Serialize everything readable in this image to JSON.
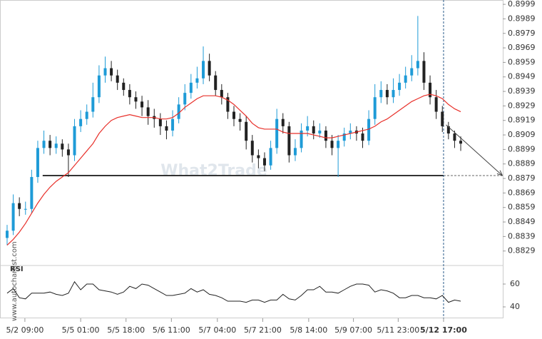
{
  "chart_data": {
    "type": "candlestick",
    "side_text": "www.autochartist.com",
    "watermark": "What2Trade",
    "up_color": "#1e9bd7",
    "down_color": "#222222",
    "ma_color": "#e8302a",
    "xlim": [
      -1.16,
      80.86
    ],
    "ylim": [
      0.882,
      0.9002
    ],
    "yticks": [
      0.8999,
      0.8989,
      0.8979,
      0.8969,
      0.8959,
      0.8949,
      0.8939,
      0.8929,
      0.8919,
      0.8909,
      0.8899,
      0.8889,
      0.8879,
      0.8869,
      0.8859,
      0.8849,
      0.8839,
      0.8829
    ],
    "xticks": [
      {
        "value": 2.9,
        "label": "5/2 09:00"
      },
      {
        "value": 12.0,
        "label": "5/5 01:00"
      },
      {
        "value": 19.4,
        "label": "5/5 18:00"
      },
      {
        "value": 26.8,
        "label": "5/6 11:00"
      },
      {
        "value": 34.3,
        "label": "5/7 04:00"
      },
      {
        "value": 41.7,
        "label": "5/7 21:00"
      },
      {
        "value": 49.2,
        "label": "5/8 14:00"
      },
      {
        "value": 56.5,
        "label": "5/9 07:00"
      },
      {
        "value": 63.8,
        "label": "5/11 23:00"
      },
      {
        "value": 71.2,
        "label": "5/12 17:00"
      }
    ],
    "open": [
      0.8838,
      0.8843,
      0.8862,
      0.8858,
      0.8858,
      0.888,
      0.89,
      0.8905,
      0.89,
      0.8903,
      0.8899,
      0.8895,
      0.8915,
      0.892,
      0.8925,
      0.8935,
      0.895,
      0.8955,
      0.895,
      0.8945,
      0.894,
      0.8935,
      0.8932,
      0.8928,
      0.8922,
      0.892,
      0.8915,
      0.8912,
      0.892,
      0.893,
      0.8938,
      0.8945,
      0.8948,
      0.896,
      0.895,
      0.894,
      0.8935,
      0.8925,
      0.892,
      0.8918,
      0.8905,
      0.8895,
      0.8893,
      0.8888,
      0.89,
      0.892,
      0.8915,
      0.8895,
      0.89,
      0.8912,
      0.8915,
      0.891,
      0.8912,
      0.8905,
      0.89,
      0.8905,
      0.891,
      0.8912,
      0.891,
      0.8905,
      0.892,
      0.8935,
      0.894,
      0.8935,
      0.894,
      0.8945,
      0.895,
      0.8955,
      0.896,
      0.8945,
      0.8935,
      0.8925,
      0.8915,
      0.891,
      0.8905
    ],
    "high": [
      0.8847,
      0.8868,
      0.8866,
      0.8863,
      0.8885,
      0.8905,
      0.8912,
      0.8909,
      0.8908,
      0.8906,
      0.8903,
      0.892,
      0.8926,
      0.893,
      0.8945,
      0.8957,
      0.8963,
      0.896,
      0.8954,
      0.8948,
      0.8944,
      0.8939,
      0.8936,
      0.8933,
      0.8927,
      0.8924,
      0.8919,
      0.8926,
      0.8935,
      0.8944,
      0.8951,
      0.8956,
      0.897,
      0.8965,
      0.8953,
      0.8944,
      0.8938,
      0.8929,
      0.8924,
      0.8922,
      0.8909,
      0.8899,
      0.8897,
      0.8905,
      0.8927,
      0.8924,
      0.8918,
      0.8906,
      0.8917,
      0.8922,
      0.8919,
      0.8917,
      0.8915,
      0.8909,
      0.8909,
      0.8914,
      0.8917,
      0.8915,
      0.8914,
      0.8926,
      0.8944,
      0.8946,
      0.8944,
      0.8948,
      0.8951,
      0.8956,
      0.8964,
      0.8991,
      0.8966,
      0.895,
      0.894,
      0.8929,
      0.8918,
      0.8912,
      0.8908
    ],
    "low": [
      0.8833,
      0.884,
      0.8853,
      0.8854,
      0.8855,
      0.8876,
      0.8896,
      0.8895,
      0.8896,
      0.8894,
      0.888,
      0.8891,
      0.8911,
      0.8916,
      0.8921,
      0.8931,
      0.8945,
      0.8946,
      0.894,
      0.8936,
      0.893,
      0.8927,
      0.8922,
      0.8916,
      0.8914,
      0.8909,
      0.8906,
      0.8908,
      0.8917,
      0.8926,
      0.8934,
      0.8941,
      0.8944,
      0.8946,
      0.8936,
      0.893,
      0.892,
      0.8915,
      0.8912,
      0.8899,
      0.889,
      0.8886,
      0.8884,
      0.8885,
      0.8896,
      0.891,
      0.889,
      0.8891,
      0.8897,
      0.8908,
      0.8906,
      0.8907,
      0.89,
      0.8895,
      0.888,
      0.8901,
      0.8906,
      0.8905,
      0.89,
      0.8902,
      0.8916,
      0.8931,
      0.893,
      0.8931,
      0.8936,
      0.8941,
      0.8946,
      0.895,
      0.894,
      0.893,
      0.892,
      0.8911,
      0.8906,
      0.89,
      0.8898
    ],
    "close": [
      0.8843,
      0.8862,
      0.8858,
      0.8858,
      0.888,
      0.89,
      0.8905,
      0.89,
      0.8903,
      0.8899,
      0.8895,
      0.8915,
      0.892,
      0.8925,
      0.8935,
      0.895,
      0.8955,
      0.895,
      0.8945,
      0.894,
      0.8935,
      0.8932,
      0.8928,
      0.8922,
      0.892,
      0.8915,
      0.8912,
      0.892,
      0.893,
      0.8938,
      0.8945,
      0.8948,
      0.896,
      0.895,
      0.894,
      0.8935,
      0.8925,
      0.892,
      0.8918,
      0.8905,
      0.8895,
      0.8893,
      0.8888,
      0.89,
      0.892,
      0.8915,
      0.8895,
      0.89,
      0.8912,
      0.8915,
      0.891,
      0.8912,
      0.8905,
      0.89,
      0.8905,
      0.891,
      0.8912,
      0.891,
      0.8905,
      0.892,
      0.8935,
      0.894,
      0.8935,
      0.894,
      0.8945,
      0.895,
      0.8955,
      0.896,
      0.8945,
      0.8935,
      0.8925,
      0.8915,
      0.891,
      0.8905,
      0.8903
    ],
    "ma": [
      0.8833,
      0.8837,
      0.8842,
      0.8848,
      0.8855,
      0.8862,
      0.8868,
      0.8873,
      0.8877,
      0.888,
      0.8883,
      0.8888,
      0.8893,
      0.8898,
      0.8903,
      0.891,
      0.8915,
      0.8919,
      0.8921,
      0.8922,
      0.8923,
      0.8922,
      0.8921,
      0.8921,
      0.8921,
      0.892,
      0.892,
      0.8921,
      0.8924,
      0.8928,
      0.8931,
      0.8934,
      0.8936,
      0.8936,
      0.8936,
      0.8935,
      0.8933,
      0.893,
      0.8926,
      0.8922,
      0.8917,
      0.8914,
      0.8913,
      0.8913,
      0.8913,
      0.8911,
      0.891,
      0.891,
      0.891,
      0.891,
      0.8909,
      0.8908,
      0.8907,
      0.8907,
      0.8908,
      0.8909,
      0.891,
      0.8911,
      0.8912,
      0.8913,
      0.8915,
      0.8918,
      0.892,
      0.8923,
      0.8926,
      0.8929,
      0.8932,
      0.8934,
      0.8936,
      0.8937,
      0.8936,
      0.8934,
      0.893,
      0.8927,
      0.8925
    ],
    "support": {
      "level": 0.8881,
      "from": 5.8,
      "to": 71.2
    },
    "projection": {
      "from": [
        71.6,
        0.8916
      ],
      "to": [
        80.8,
        0.8881
      ]
    },
    "current_x": 71.2,
    "rsi": {
      "title": "RSI",
      "ylim": [
        30,
        75
      ],
      "yticks": [
        40,
        60
      ],
      "values": [
        52,
        56,
        48,
        47,
        52,
        52,
        52,
        53,
        51,
        50,
        52,
        62,
        55,
        60,
        60,
        55,
        54,
        53,
        51,
        53,
        58,
        56,
        60,
        59,
        56,
        53,
        50,
        50,
        51,
        52,
        56,
        53,
        55,
        51,
        50,
        48,
        45,
        45,
        45,
        44,
        46,
        46,
        44,
        46,
        46,
        51,
        47,
        46,
        50,
        55,
        55,
        58,
        53,
        53,
        52,
        55,
        58,
        60,
        60,
        59,
        53,
        55,
        54,
        52,
        48,
        48,
        50,
        50,
        48,
        48,
        47,
        50,
        44,
        46,
        45
      ]
    }
  }
}
